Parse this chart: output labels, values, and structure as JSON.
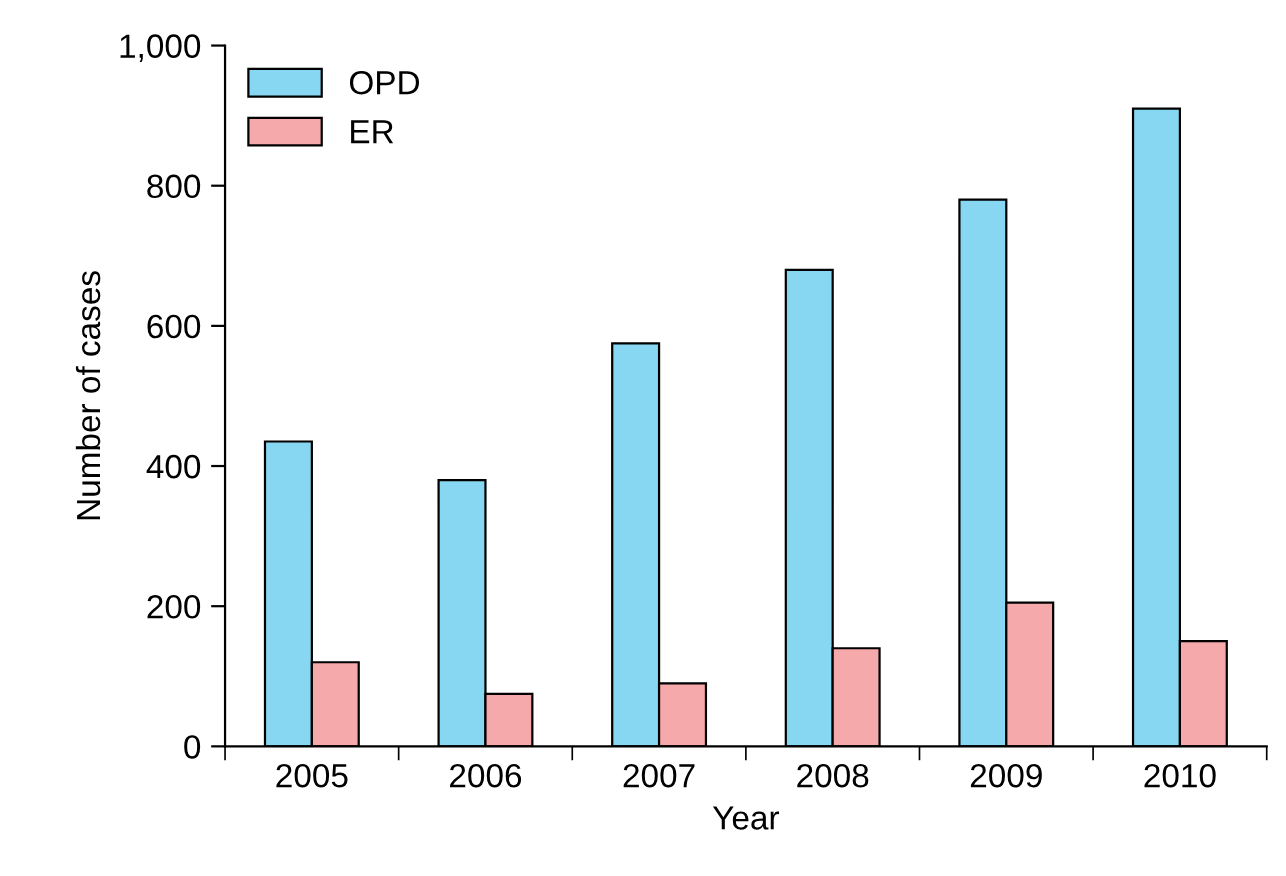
{
  "chart_data": {
    "type": "bar",
    "xlabel": "Year",
    "ylabel": "Number of cases",
    "categories": [
      "2005",
      "2006",
      "2007",
      "2008",
      "2009",
      "2010"
    ],
    "series": [
      {
        "name": "OPD",
        "color": "#87d6f2",
        "values": [
          435,
          380,
          575,
          680,
          780,
          910
        ]
      },
      {
        "name": "ER",
        "color": "#f6a9aa",
        "values": [
          120,
          75,
          90,
          140,
          205,
          150
        ]
      }
    ],
    "ylim": [
      0,
      1000
    ],
    "yticks": [
      0,
      200,
      400,
      600,
      800,
      {
        "value": 1000,
        "label": "1,000"
      }
    ],
    "grid": false,
    "legend": "top left"
  }
}
